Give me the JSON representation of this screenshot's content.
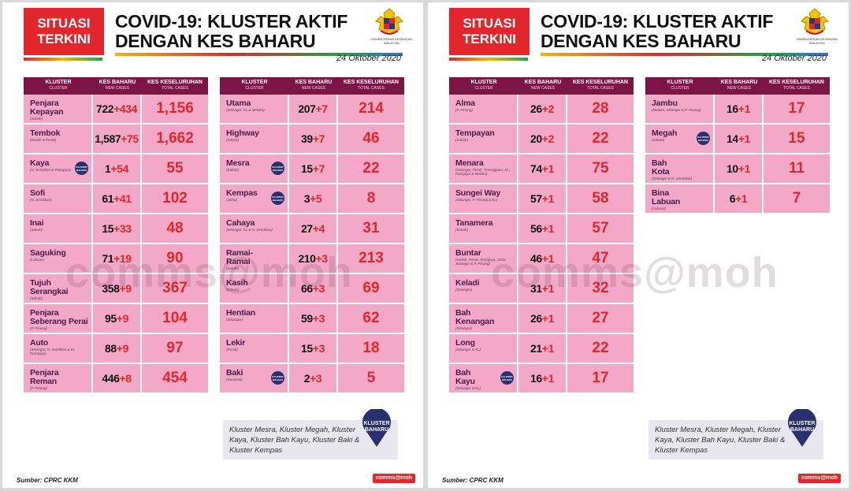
{
  "panels": [
    {
      "badge": [
        "SITUASI",
        "TERKINI"
      ],
      "title": [
        "COVID-19: KLUSTER AKTIF",
        "DENGAN KES BAHARU"
      ],
      "ministry": "KEMENTERIAN KESIHATAN MALAYSIA",
      "date": "24 Oktober 2020",
      "headers": {
        "cluster": "KLUSTER",
        "cluster_sub": "CLUSTER",
        "new": "KES BAHARU",
        "new_sub": "NEW CASES",
        "total": "KES KESELURUHAN",
        "total_sub": "TOTAL CASES"
      },
      "left_rows": [
        {
          "name": [
            "Penjara",
            "Kepayan"
          ],
          "note": "(Sabah)",
          "base": "722",
          "plus": "+434",
          "total": "1,156",
          "badge": ""
        },
        {
          "name": [
            "Tembok"
          ],
          "note": "(Kedah & Perak)",
          "base": "1,587",
          "plus": "+75",
          "total": "1,662",
          "badge": ""
        },
        {
          "name": [
            "Kaya"
          ],
          "note": "(N. Sembilan & Putrajaya)",
          "base": "1",
          "plus": "+54",
          "total": "55",
          "badge": "KLUSTER BAHARU"
        },
        {
          "name": [
            "Sofi"
          ],
          "note": "(N. Sembilan)",
          "base": "61",
          "plus": "+41",
          "total": "102",
          "badge": ""
        },
        {
          "name": [
            "Inai"
          ],
          "note": "(Sabah)",
          "base": "15",
          "plus": "+33",
          "total": "48",
          "badge": ""
        },
        {
          "name": [
            "Saguking"
          ],
          "note": "(Labuan)",
          "base": "71",
          "plus": "+19",
          "total": "90",
          "badge": ""
        },
        {
          "name": [
            "Tujuh",
            "Serangkai"
          ],
          "note": "(Sabah)",
          "base": "358",
          "plus": "+9",
          "total": "367",
          "badge": ""
        },
        {
          "name": [
            "Penjara",
            "Seberang Perai"
          ],
          "note": "(P. Pinang)",
          "base": "95",
          "plus": "+9",
          "total": "104",
          "badge": ""
        },
        {
          "name": [
            "Auto"
          ],
          "note": "(Selangor, N. Sembilan & KL Putrajaya)",
          "base": "88",
          "plus": "+9",
          "total": "97",
          "badge": ""
        },
        {
          "name": [
            "Penjara",
            "Reman"
          ],
          "note": "(P. Pinang)",
          "base": "446",
          "plus": "+8",
          "total": "454",
          "badge": ""
        }
      ],
      "right_rows": [
        {
          "name": [
            "Utama"
          ],
          "note": "(Selangor, KL & Melaka)",
          "base": "207",
          "plus": "+7",
          "total": "214",
          "badge": ""
        },
        {
          "name": [
            "Highway"
          ],
          "note": "(Sabah)",
          "base": "39",
          "plus": "+7",
          "total": "46",
          "badge": ""
        },
        {
          "name": [
            "Mesra"
          ],
          "note": "(Sabah)",
          "base": "15",
          "plus": "+7",
          "total": "22",
          "badge": "KLUSTER BAHARU"
        },
        {
          "name": [
            "Kempas"
          ],
          "note": "(Johor)",
          "base": "3",
          "plus": "+5",
          "total": "8",
          "badge": "KLUSTER BAHARU"
        },
        {
          "name": [
            "Cahaya"
          ],
          "note": "(Selangor, KL & N. Sembilan)",
          "base": "27",
          "plus": "+4",
          "total": "31",
          "badge": ""
        },
        {
          "name": [
            "Ramai-",
            "Ramai"
          ],
          "note": "(Sabah)",
          "base": "210",
          "plus": "+3",
          "total": "213",
          "badge": ""
        },
        {
          "name": [
            "Kasih"
          ],
          "note": "(Sabah)",
          "base": "66",
          "plus": "+3",
          "total": "69",
          "badge": ""
        },
        {
          "name": [
            "Hentian"
          ],
          "note": "(Selangor)",
          "base": "59",
          "plus": "+3",
          "total": "62",
          "badge": ""
        },
        {
          "name": [
            "Lekir"
          ],
          "note": "(Perak)",
          "base": "15",
          "plus": "+3",
          "total": "18",
          "badge": ""
        },
        {
          "name": [
            "Baki"
          ],
          "note": "(Sarawak)",
          "base": "2",
          "plus": "+3",
          "total": "5",
          "badge": "KLUSTER BAHARU"
        }
      ],
      "note_text": "Kluster Mesra, Kluster Megah, Kluster Kaya, Kluster Bah Kayu, Kluster Baki & Kluster Kempas",
      "pin_label": [
        "KLUSTER",
        "BAHARU"
      ],
      "source": "Sumber: CPRC KKM",
      "comms": "comms@moh",
      "watermark": "comms@moh"
    },
    {
      "badge": [
        "SITUASI",
        "TERKINI"
      ],
      "title": [
        "COVID-19: KLUSTER AKTIF",
        "DENGAN KES BAHARU"
      ],
      "ministry": "KEMENTERIAN KESIHATAN MALAYSIA",
      "date": "24 Oktober 2020",
      "headers": {
        "cluster": "KLUSTER",
        "cluster_sub": "CLUSTER",
        "new": "KES BAHARU",
        "new_sub": "NEW CASES",
        "total": "KES KESELURUHAN",
        "total_sub": "TOTAL CASES"
      },
      "left_rows": [
        {
          "name": [
            "Alma"
          ],
          "note": "(P. Pinang)",
          "base": "26",
          "plus": "+2",
          "total": "28",
          "badge": ""
        },
        {
          "name": [
            "Tempayan"
          ],
          "note": "(Sabah)",
          "base": "20",
          "plus": "+2",
          "total": "22",
          "badge": ""
        },
        {
          "name": [
            "Menara"
          ],
          "note": "(Selangor, Perak, Terengganu, KL, Putrajaya & Melaka)",
          "base": "74",
          "plus": "+1",
          "total": "75",
          "badge": ""
        },
        {
          "name": [
            "Sungei Way"
          ],
          "note": "(Selangor, P. Pinang & KL)",
          "base": "57",
          "plus": "+1",
          "total": "58",
          "badge": ""
        },
        {
          "name": [
            "Tanamera"
          ],
          "note": "(Sabah)",
          "base": "56",
          "plus": "+1",
          "total": "57",
          "badge": ""
        },
        {
          "name": [
            "Buntar"
          ],
          "note": "(Kedah, Perak, Putrajaya, Johor, Selangor & P. Pinang)",
          "base": "46",
          "plus": "+1",
          "total": "47",
          "badge": ""
        },
        {
          "name": [
            "Keladi"
          ],
          "note": "(Selangor)",
          "base": "31",
          "plus": "+1",
          "total": "32",
          "badge": ""
        },
        {
          "name": [
            "Bah",
            "Kenangan"
          ],
          "note": "(Selangor)",
          "base": "26",
          "plus": "+1",
          "total": "27",
          "badge": ""
        },
        {
          "name": [
            "Long"
          ],
          "note": "(Selangor & KL)",
          "base": "21",
          "plus": "+1",
          "total": "22",
          "badge": ""
        },
        {
          "name": [
            "Bah",
            "Kayu"
          ],
          "note": "(Selangor & KL)",
          "base": "16",
          "plus": "+1",
          "total": "17",
          "badge": "KLUSTER BAHARU"
        }
      ],
      "right_rows": [
        {
          "name": [
            "Jambu"
          ],
          "note": "(Melaka, Selangor & P. Pinang)",
          "base": "16",
          "plus": "+1",
          "total": "17",
          "badge": ""
        },
        {
          "name": [
            "Megah"
          ],
          "note": "(Sabah)",
          "base": "14",
          "plus": "+1",
          "total": "15",
          "badge": "KLUSTER BAHARU"
        },
        {
          "name": [
            "Bah",
            "Kota"
          ],
          "note": "(Selangor & N. Sembilan)",
          "base": "10",
          "plus": "+1",
          "total": "11",
          "badge": ""
        },
        {
          "name": [
            "Bina",
            "Labuan"
          ],
          "note": "(Labuan)",
          "base": "6",
          "plus": "+1",
          "total": "7",
          "badge": ""
        }
      ],
      "note_text": "Kluster Mesra, Kluster Megah, Kluster Kaya, Kluster Bah Kayu, Kluster Baki & Kluster Kempas",
      "pin_label": [
        "KLUSTER",
        "BAHARU"
      ],
      "source": "Sumber: CPRC KKM",
      "comms": "comms@moh",
      "watermark": "comms@moh"
    }
  ]
}
